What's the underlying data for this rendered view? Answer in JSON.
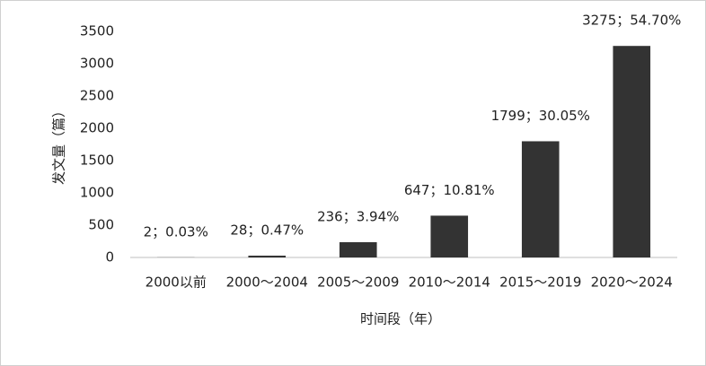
{
  "chart_data": {
    "type": "bar",
    "x_label": "时间段（年）",
    "y_label": "发文量（篇）",
    "categories": [
      "2000以前",
      "2000～2004",
      "2005～2009",
      "2010～2014",
      "2015～2019",
      "2020～2024"
    ],
    "values": [
      2,
      28,
      236,
      647,
      1799,
      3275
    ],
    "value_labels": [
      "2；0.03%",
      "28；0.47%",
      "236；3.94%",
      "647；10.81%",
      "1799；30.05%",
      "3275；54.70%"
    ],
    "color": "#333333",
    "ylim": [
      0,
      3500
    ],
    "yticks": [
      0,
      500,
      1000,
      1500,
      2000,
      2500,
      3000,
      3500
    ],
    "grid": false
  }
}
